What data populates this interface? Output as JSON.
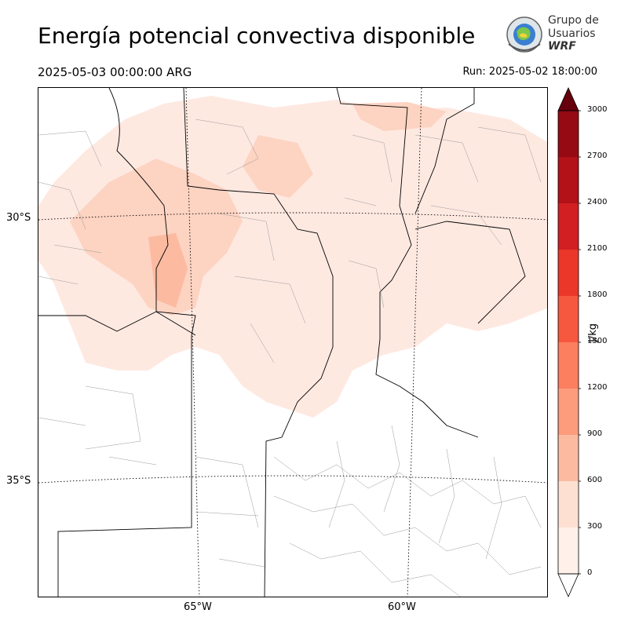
{
  "header": {
    "title": "Energía potencial convectiva disponible",
    "valid_time": "2025-05-03 00:00:00 ARG",
    "run_label": "Run: 2025-05-02 18:00:00"
  },
  "logo": {
    "line1": "Grupo de",
    "line2": "Usuarios",
    "line3": "WRF",
    "icon": "wrf-globe-logo"
  },
  "map": {
    "latitude_labels": [
      "30°S",
      "35°S"
    ],
    "longitude_labels": [
      "65°W",
      "60°W"
    ],
    "field": "CAPE",
    "shading_colors": {
      "very_light": "#fee9e1",
      "light": "#fdd3c2",
      "medium": "#fcbba1"
    }
  },
  "colorbar": {
    "unit": "J/kg",
    "min": 0,
    "max": 3000,
    "ticks": [
      "0",
      "300",
      "600",
      "900",
      "1200",
      "1500",
      "1800",
      "2100",
      "2400",
      "2700",
      "3000"
    ],
    "colors": [
      "#fff1ea",
      "#fee0d2",
      "#fcbba1",
      "#fc9c7d",
      "#fc7f5f",
      "#f6583f",
      "#ea372a",
      "#d21f22",
      "#b21218",
      "#960a14",
      "#67000d"
    ],
    "extend_color": "#67000d"
  }
}
